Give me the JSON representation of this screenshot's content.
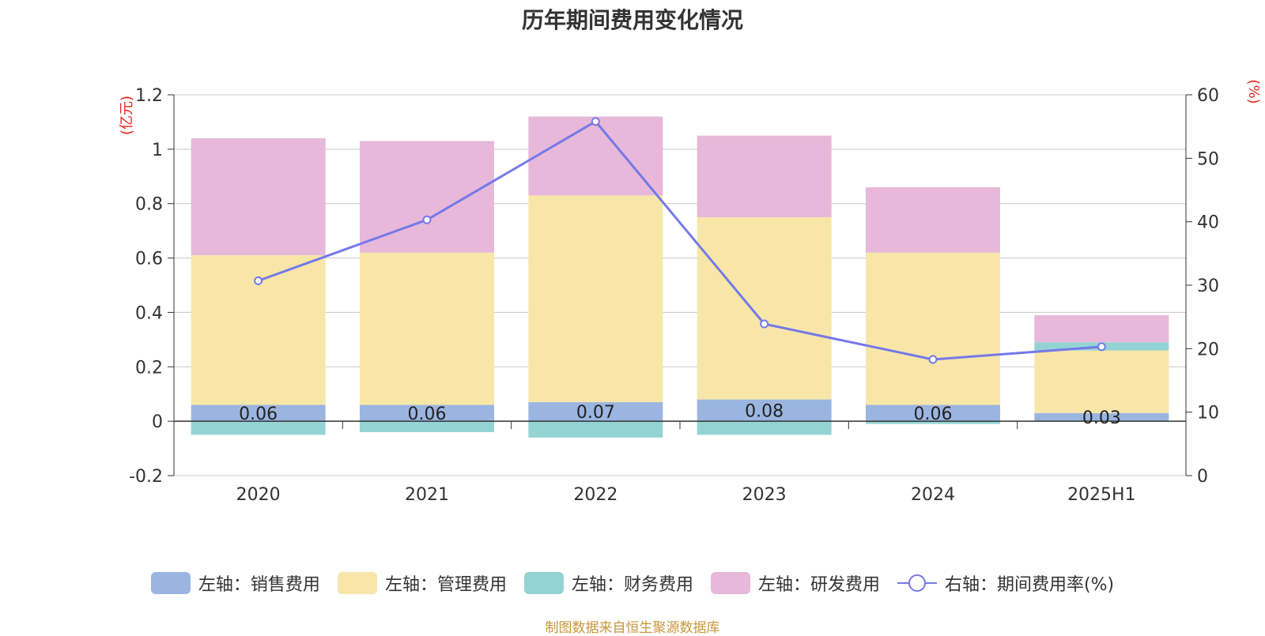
{
  "title": "历年期间费用变化情况",
  "left_unit": "(亿元)",
  "right_unit": "(%)",
  "footer": "制图数据来自恒生聚源数据库",
  "colors": {
    "sales": "#9bb5e1",
    "admin": "#f7e6a8",
    "finance": "#94d3d3",
    "rd": "#e7b8d9",
    "rate": "#7579e8",
    "unit_text": "#e8261e",
    "footer": "#c8963c"
  },
  "legend": [
    {
      "label": "左轴：销售费用",
      "key": "sales",
      "icon": "swatch"
    },
    {
      "label": "左轴：管理费用",
      "key": "admin",
      "icon": "swatch"
    },
    {
      "label": "左轴：财务费用",
      "key": "finance",
      "icon": "swatch"
    },
    {
      "label": "左轴：研发费用",
      "key": "rd",
      "icon": "swatch"
    },
    {
      "label": "右轴：期间费用率(%)",
      "key": "rate",
      "icon": "line-circle"
    }
  ],
  "chart_data": {
    "type": "bar",
    "stacked": true,
    "categories": [
      "2020",
      "2021",
      "2022",
      "2023",
      "2024",
      "2025H1"
    ],
    "series": [
      {
        "name": "左轴：销售费用",
        "key": "sales",
        "axis": "left",
        "values": [
          0.06,
          0.06,
          0.07,
          0.08,
          0.06,
          0.03
        ]
      },
      {
        "name": "左轴：管理费用",
        "key": "admin",
        "axis": "left",
        "values": [
          0.55,
          0.56,
          0.76,
          0.67,
          0.56,
          0.23
        ]
      },
      {
        "name": "左轴：财务费用",
        "key": "finance",
        "axis": "left",
        "values": [
          -0.05,
          -0.04,
          -0.06,
          -0.05,
          -0.01,
          0.03
        ]
      },
      {
        "name": "左轴：研发费用",
        "key": "rd",
        "axis": "left",
        "values": [
          0.43,
          0.41,
          0.29,
          0.3,
          0.24,
          0.1
        ]
      },
      {
        "name": "右轴：期间费用率(%)",
        "key": "rate",
        "axis": "right",
        "type": "line",
        "values": [
          30.7,
          40.3,
          55.8,
          23.9,
          18.3,
          20.3
        ]
      }
    ],
    "data_labels": {
      "series": "左轴：销售费用",
      "values": [
        "0.06",
        "0.06",
        "0.07",
        "0.08",
        "0.06",
        "0.03"
      ]
    },
    "y_left": {
      "min": -0.2,
      "max": 1.2,
      "ticks": [
        -0.2,
        0,
        0.2,
        0.4,
        0.6,
        0.8,
        1,
        1.2
      ],
      "tick_labels": [
        "-0.2",
        "0",
        "0.2",
        "0.4",
        "0.6",
        "0.8",
        "1",
        "1.2"
      ]
    },
    "y_right": {
      "min": 0,
      "max": 60,
      "ticks": [
        0,
        10,
        20,
        30,
        40,
        50,
        60
      ],
      "tick_labels": [
        "0",
        "10",
        "20",
        "30",
        "40",
        "50",
        "60"
      ]
    },
    "grid": true,
    "legend_position": "bottom"
  }
}
